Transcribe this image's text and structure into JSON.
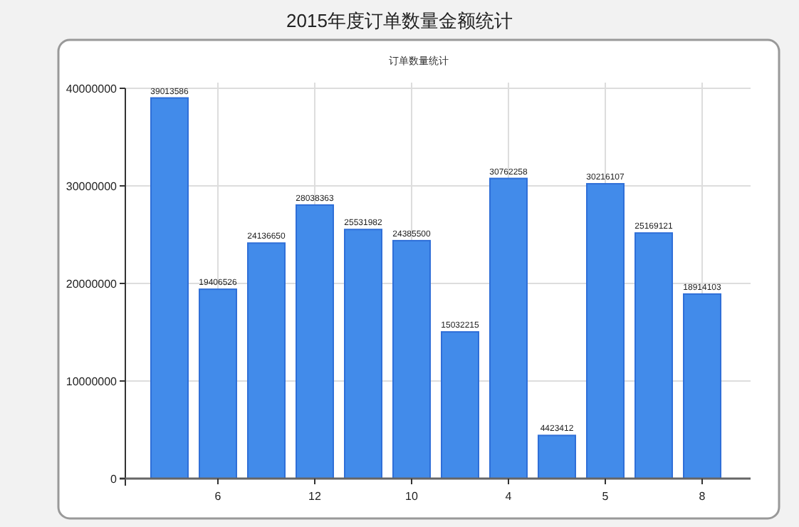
{
  "chart_data": {
    "type": "bar",
    "title": "2015年度订单数量金额统计",
    "subtitle": "订单数量统计",
    "categories": [
      null,
      "6",
      null,
      "12",
      null,
      "10",
      null,
      "4",
      null,
      "5",
      null,
      "8"
    ],
    "values": [
      39013586,
      19406526,
      24136650,
      28038363,
      25531982,
      24385500,
      15032215,
      30762258,
      4423412,
      30216107,
      25169121,
      18914103
    ],
    "color": "#428bea",
    "ylim": [
      0,
      40000000
    ],
    "yticks": [
      0,
      10000000,
      20000000,
      30000000,
      40000000
    ],
    "grid": true,
    "data_labels": true
  }
}
